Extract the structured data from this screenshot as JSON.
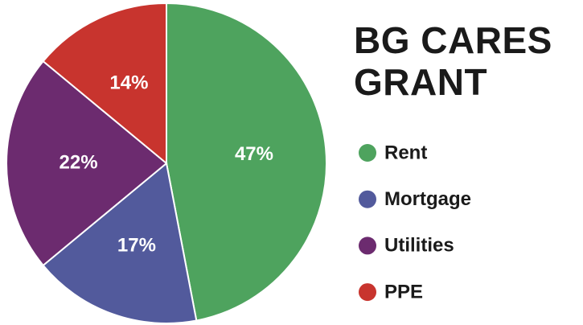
{
  "chart_data": {
    "type": "pie",
    "title": "BG CARES GRANT",
    "categories": [
      "Rent",
      "Mortgage",
      "Utilities",
      "PPE"
    ],
    "values": [
      47,
      17,
      22,
      14
    ],
    "value_labels": [
      "47%",
      "17%",
      "22%",
      "14%"
    ],
    "colors": [
      "#4ea35e",
      "#525a9c",
      "#6c2b6f",
      "#c8342e"
    ]
  }
}
